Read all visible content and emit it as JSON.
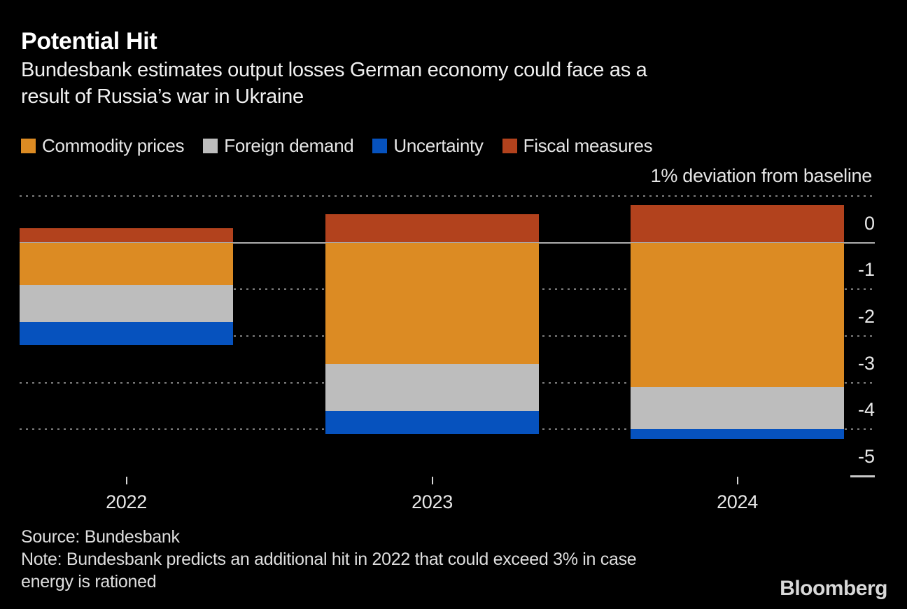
{
  "header": {
    "title": "Potential Hit",
    "subtitle_lines": [
      "Bundesbank estimates output losses German economy could face as a",
      "result of Russia’s war in Ukraine"
    ]
  },
  "legend": [
    {
      "label": "Commodity prices",
      "color": "#DC8B23"
    },
    {
      "label": "Foreign demand",
      "color": "#BDBDBD"
    },
    {
      "label": "Uncertainty",
      "color": "#0652BE"
    },
    {
      "label": "Fiscal measures",
      "color": "#B2421D"
    }
  ],
  "chart_data": {
    "type": "bar",
    "stacked": true,
    "title": "Potential Hit",
    "ylabel": "1% deviation from baseline",
    "categories": [
      "2022",
      "2023",
      "2024"
    ],
    "series": [
      {
        "name": "Fiscal measures",
        "color": "#B2421D",
        "values": [
          0.3,
          0.6,
          0.8
        ]
      },
      {
        "name": "Commodity prices",
        "color": "#DC8B23",
        "values": [
          -0.9,
          -2.6,
          -3.1
        ]
      },
      {
        "name": "Foreign demand",
        "color": "#BDBDBD",
        "values": [
          -0.8,
          -1.0,
          -0.9
        ]
      },
      {
        "name": "Uncertainty",
        "color": "#0652BE",
        "values": [
          -0.5,
          -0.5,
          -0.2
        ]
      }
    ],
    "ylim": [
      -5,
      1
    ],
    "grid": "horizontal-dotted",
    "legend_position": "top",
    "y_ticks": [
      {
        "value": 1,
        "label": "",
        "style": "dotted"
      },
      {
        "value": 0,
        "label": "0",
        "style": "solid"
      },
      {
        "value": -1,
        "label": "-1",
        "style": "dotted"
      },
      {
        "value": -2,
        "label": "-2",
        "style": "dotted"
      },
      {
        "value": -3,
        "label": "-3",
        "style": "dotted"
      },
      {
        "value": -4,
        "label": "-4",
        "style": "dotted"
      },
      {
        "value": -5,
        "label": "-5",
        "style": "dash-right"
      }
    ]
  },
  "footer": {
    "source": "Source: Bundesbank",
    "note_lines": [
      "Note: Bundesbank predicts an additional hit in 2022 that could exceed 3% in case",
      "energy is rationed"
    ],
    "logo": "Bloomberg"
  },
  "colors": {
    "background": "#000000",
    "text_primary": "#FFFFFF",
    "text_secondary": "#E6E6E6",
    "gridline_dotted": "#7F7F7F",
    "zero_line": "#ADADAD",
    "x_tick": "#D6D6D6",
    "dash_right": "#C9C9C9"
  }
}
